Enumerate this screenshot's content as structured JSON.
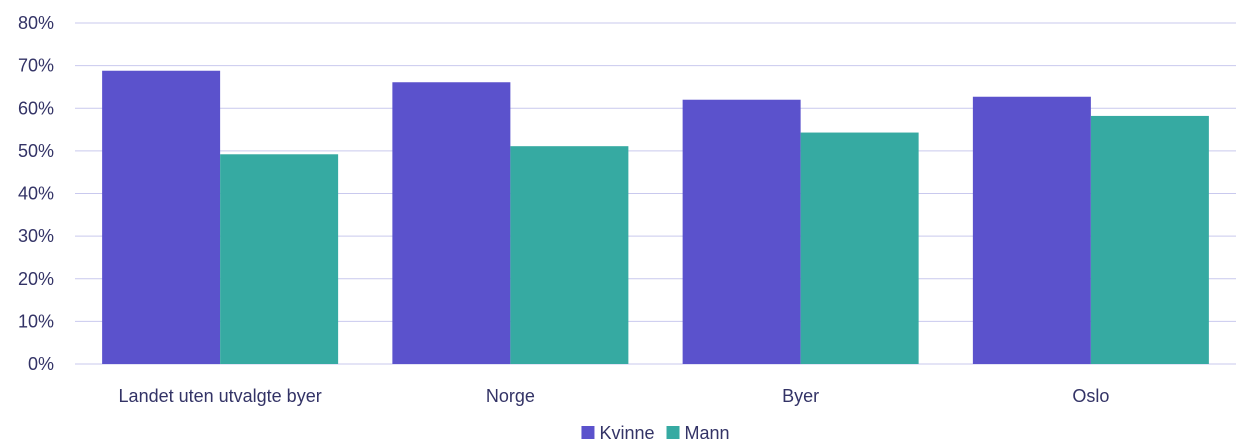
{
  "chart_data": {
    "type": "bar",
    "categories": [
      "Landet uten utvalgte byer",
      "Norge",
      "Byer",
      "Oslo"
    ],
    "series": [
      {
        "name": "Kvinne",
        "color": "#5b52cc",
        "values": [
          0.688,
          0.661,
          0.62,
          0.627
        ]
      },
      {
        "name": "Mann",
        "color": "#36aaa2",
        "values": [
          0.492,
          0.511,
          0.543,
          0.582
        ]
      }
    ],
    "yticks": [
      "0%",
      "10%",
      "20%",
      "30%",
      "40%",
      "50%",
      "60%",
      "70%",
      "80%"
    ],
    "ylim": [
      0,
      0.8
    ],
    "grid": true,
    "legend_position": "bottom-center",
    "title": "",
    "xlabel": "",
    "ylabel": ""
  }
}
